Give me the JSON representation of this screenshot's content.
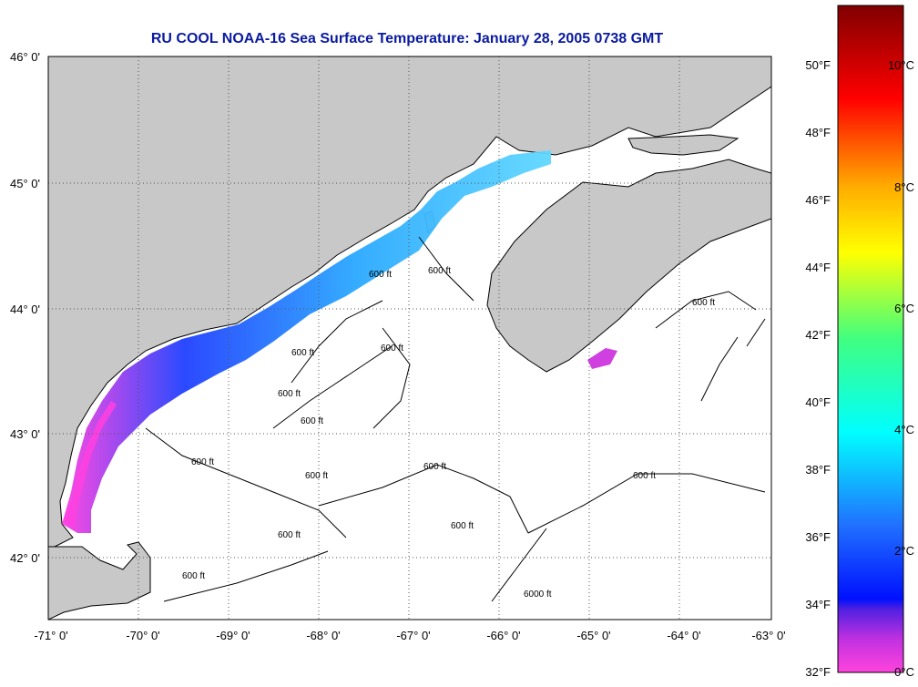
{
  "title": "RU COOL  NOAA-16  Sea Surface Temperature:  January 28, 2005 0738 GMT",
  "colors": {
    "title": "#0a1aa0",
    "land": "#c8c8c8",
    "ocean": "#ffffff",
    "grid": "#555555",
    "contour": "#000000"
  },
  "map": {
    "lon_ticks": [
      "-71° 0'",
      "-70° 0'",
      "-69° 0'",
      "-68° 0'",
      "-67° 0'",
      "-66° 0'",
      "-65° 0'",
      "-64° 0'",
      "-63° 0'"
    ],
    "lat_ticks": [
      "46° 0'",
      "45° 0'",
      "44° 0'",
      "43° 0'",
      "42° 0'"
    ],
    "lon_range": [
      -71,
      -63
    ],
    "lat_range": [
      41.5,
      46.0
    ],
    "isobath_labels": [
      "600 ft",
      "600 ft",
      "600 ft",
      "600 ft",
      "600 ft",
      "600 ft",
      "600 ft",
      "600 ft",
      "600 ft",
      "600 ft",
      "600 ft",
      "600 ft",
      "600 ft",
      "600 ft",
      "6000 ft"
    ]
  },
  "colorbar": {
    "fahrenheit_ticks": [
      "50°F",
      "48°F",
      "46°F",
      "44°F",
      "42°F",
      "40°F",
      "38°F",
      "36°F",
      "34°F",
      "32°F"
    ],
    "celsius_ticks": [
      "10°C",
      "8°C",
      "6°C",
      "4°C",
      "2°C",
      "0°C"
    ],
    "range_celsius": [
      0,
      11
    ]
  }
}
